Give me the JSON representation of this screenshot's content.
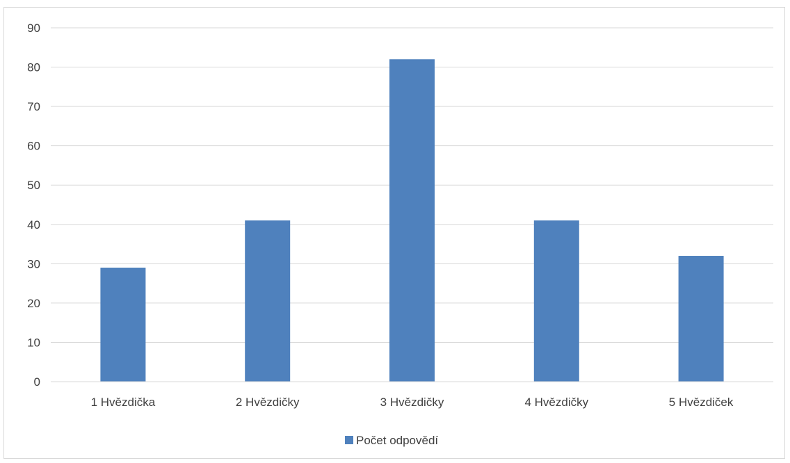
{
  "chart_data": {
    "type": "bar",
    "categories": [
      "1 Hvězdička",
      "2 Hvězdičky",
      "3 Hvězdičky",
      "4 Hvězdičky",
      "5 Hvězdiček"
    ],
    "series": [
      {
        "name": "Počet odpovědí",
        "values": [
          29,
          41,
          82,
          41,
          32
        ],
        "color": "#4f81bd"
      }
    ],
    "ylim": [
      0,
      90
    ],
    "yticks": [
      0,
      10,
      20,
      30,
      40,
      50,
      60,
      70,
      80,
      90
    ],
    "grid": true,
    "legend": "bottom",
    "title": "",
    "xlabel": "",
    "ylabel": ""
  }
}
